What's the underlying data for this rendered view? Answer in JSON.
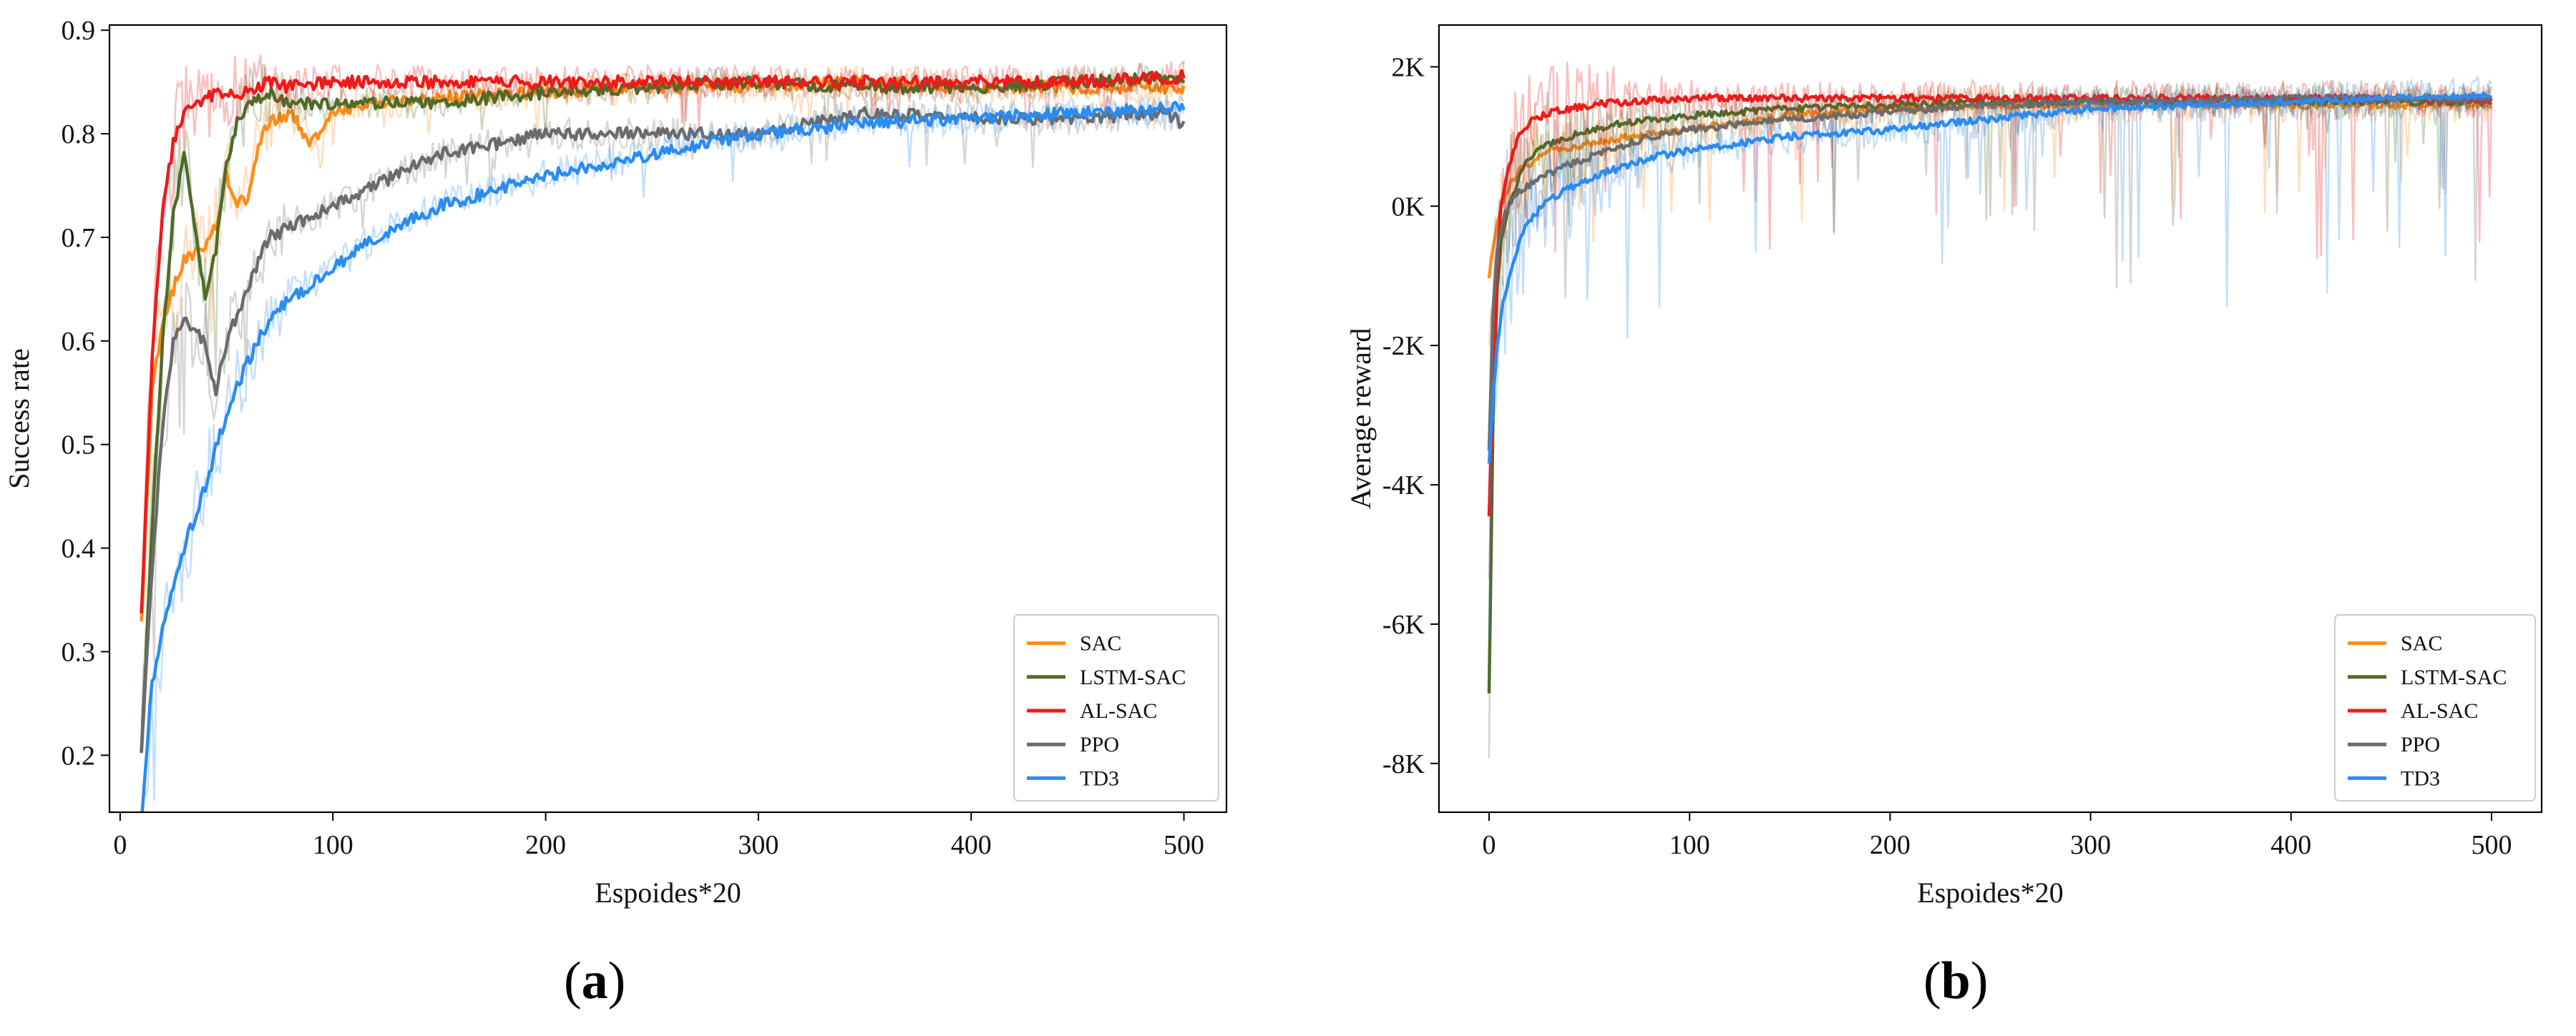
{
  "chart_data": [
    {
      "type": "line",
      "panel_label": "a",
      "xlabel": "Espoides*20",
      "ylabel": "Success rate",
      "xlim": [
        -5,
        520
      ],
      "ylim": [
        0.145,
        0.905
      ],
      "xticks": [
        0,
        100,
        200,
        300,
        400,
        500
      ],
      "xtick_labels": [
        "0",
        "100",
        "200",
        "300",
        "400",
        "500"
      ],
      "yticks": [
        0.2,
        0.3,
        0.4,
        0.5,
        0.6,
        0.7,
        0.8,
        0.9
      ],
      "ytick_labels": [
        "0.2",
        "0.3",
        "0.4",
        "0.5",
        "0.6",
        "0.7",
        "0.8",
        "0.9"
      ],
      "grid": false,
      "legend_position": "bottom-right",
      "shaded_raw_band": true,
      "series": [
        {
          "name": "SAC",
          "color": "#ff8c1a",
          "x": [
            10,
            15,
            20,
            25,
            30,
            40,
            45,
            50,
            55,
            60,
            65,
            70,
            80,
            90,
            100,
            120,
            150,
            200,
            250,
            300,
            350,
            400,
            450,
            500
          ],
          "y": [
            0.33,
            0.55,
            0.62,
            0.65,
            0.68,
            0.69,
            0.71,
            0.76,
            0.73,
            0.74,
            0.79,
            0.81,
            0.82,
            0.79,
            0.82,
            0.83,
            0.835,
            0.84,
            0.845,
            0.845,
            0.85,
            0.845,
            0.845,
            0.845
          ]
        },
        {
          "name": "LSTM-SAC",
          "color": "#4f6b2a",
          "x": [
            10,
            15,
            20,
            25,
            30,
            35,
            40,
            45,
            50,
            55,
            60,
            70,
            80,
            100,
            150,
            200,
            250,
            300,
            350,
            400,
            450,
            500
          ],
          "y": [
            0.2,
            0.42,
            0.6,
            0.72,
            0.78,
            0.71,
            0.64,
            0.69,
            0.77,
            0.81,
            0.83,
            0.84,
            0.83,
            0.83,
            0.83,
            0.84,
            0.845,
            0.85,
            0.845,
            0.845,
            0.85,
            0.855
          ]
        },
        {
          "name": "AL-SAC",
          "color": "#ee1a1a",
          "x": [
            10,
            15,
            20,
            25,
            30,
            40,
            50,
            60,
            70,
            80,
            100,
            150,
            200,
            250,
            300,
            350,
            400,
            450,
            500
          ],
          "y": [
            0.34,
            0.58,
            0.73,
            0.79,
            0.82,
            0.835,
            0.84,
            0.84,
            0.85,
            0.845,
            0.85,
            0.85,
            0.85,
            0.85,
            0.85,
            0.85,
            0.85,
            0.85,
            0.855
          ]
        },
        {
          "name": "PPO",
          "color": "#6b6b6b",
          "x": [
            10,
            15,
            20,
            25,
            30,
            40,
            45,
            50,
            60,
            70,
            80,
            100,
            120,
            150,
            200,
            250,
            300,
            350,
            400,
            450,
            490,
            500
          ],
          "y": [
            0.2,
            0.38,
            0.52,
            0.6,
            0.62,
            0.6,
            0.55,
            0.6,
            0.65,
            0.7,
            0.71,
            0.73,
            0.75,
            0.78,
            0.8,
            0.8,
            0.8,
            0.82,
            0.815,
            0.815,
            0.82,
            0.81
          ]
        },
        {
          "name": "TD3",
          "color": "#2b8cf0",
          "x": [
            10,
            15,
            20,
            30,
            40,
            50,
            60,
            70,
            80,
            100,
            120,
            150,
            200,
            250,
            300,
            350,
            400,
            450,
            500
          ],
          "y": [
            0.14,
            0.27,
            0.32,
            0.4,
            0.46,
            0.53,
            0.58,
            0.62,
            0.64,
            0.67,
            0.7,
            0.73,
            0.76,
            0.78,
            0.8,
            0.81,
            0.815,
            0.82,
            0.825
          ]
        }
      ]
    },
    {
      "type": "line",
      "panel_label": "b",
      "xlabel": "Espoides*20",
      "ylabel": "Average reward",
      "xlim": [
        -25,
        525
      ],
      "ylim": [
        -8700,
        2600
      ],
      "xticks": [
        0,
        100,
        200,
        300,
        400,
        500
      ],
      "xtick_labels": [
        "0",
        "100",
        "200",
        "300",
        "400",
        "500"
      ],
      "yticks": [
        -8000,
        -6000,
        -4000,
        -2000,
        0,
        2000
      ],
      "ytick_labels": [
        "-8K",
        "-6K",
        "-4K",
        "-2K",
        "0K",
        "2K"
      ],
      "grid": false,
      "legend_position": "bottom-right",
      "shaded_raw_band": true,
      "series": [
        {
          "name": "SAC",
          "color": "#ff8c1a",
          "x": [
            0,
            3,
            6,
            10,
            15,
            20,
            30,
            50,
            70,
            100,
            150,
            200,
            250,
            300,
            350,
            400,
            450,
            500
          ],
          "y": [
            -1000,
            -400,
            0,
            300,
            500,
            600,
            800,
            900,
            1000,
            1100,
            1300,
            1400,
            1450,
            1450,
            1450,
            1450,
            1450,
            1450
          ]
        },
        {
          "name": "LSTM-SAC",
          "color": "#4f6b2a",
          "x": [
            0,
            1,
            2,
            4,
            6,
            10,
            15,
            20,
            30,
            40,
            50,
            70,
            100,
            150,
            200,
            250,
            300,
            350,
            400,
            450,
            500
          ],
          "y": [
            -7000,
            -5000,
            -3000,
            -1200,
            -500,
            0,
            400,
            700,
            900,
            1000,
            1100,
            1200,
            1300,
            1400,
            1450,
            1500,
            1500,
            1500,
            1500,
            1500,
            1500
          ]
        },
        {
          "name": "AL-SAC",
          "color": "#ee1a1a",
          "x": [
            0,
            2,
            4,
            6,
            10,
            15,
            20,
            30,
            50,
            70,
            100,
            150,
            200,
            250,
            300,
            350,
            400,
            450,
            500
          ],
          "y": [
            -4500,
            -2500,
            -800,
            0,
            600,
            1000,
            1200,
            1350,
            1450,
            1500,
            1550,
            1550,
            1550,
            1550,
            1550,
            1550,
            1550,
            1550,
            1500
          ]
        },
        {
          "name": "PPO",
          "color": "#6b6b6b",
          "x": [
            0,
            2,
            4,
            8,
            15,
            25,
            40,
            60,
            80,
            100,
            150,
            200,
            250,
            300,
            350,
            400,
            450,
            500
          ],
          "y": [
            -3500,
            -1500,
            -600,
            -100,
            200,
            400,
            600,
            800,
            1000,
            1100,
            1250,
            1350,
            1450,
            1500,
            1500,
            1550,
            1550,
            1550
          ]
        },
        {
          "name": "TD3",
          "color": "#2b8cf0",
          "x": [
            0,
            2,
            4,
            7,
            10,
            15,
            20,
            30,
            50,
            80,
            100,
            150,
            200,
            250,
            300,
            350,
            400,
            450,
            500
          ],
          "y": [
            -3700,
            -2700,
            -2000,
            -1400,
            -1000,
            -500,
            -200,
            100,
            400,
            700,
            800,
            1000,
            1100,
            1250,
            1400,
            1450,
            1500,
            1550,
            1600
          ]
        }
      ]
    }
  ]
}
